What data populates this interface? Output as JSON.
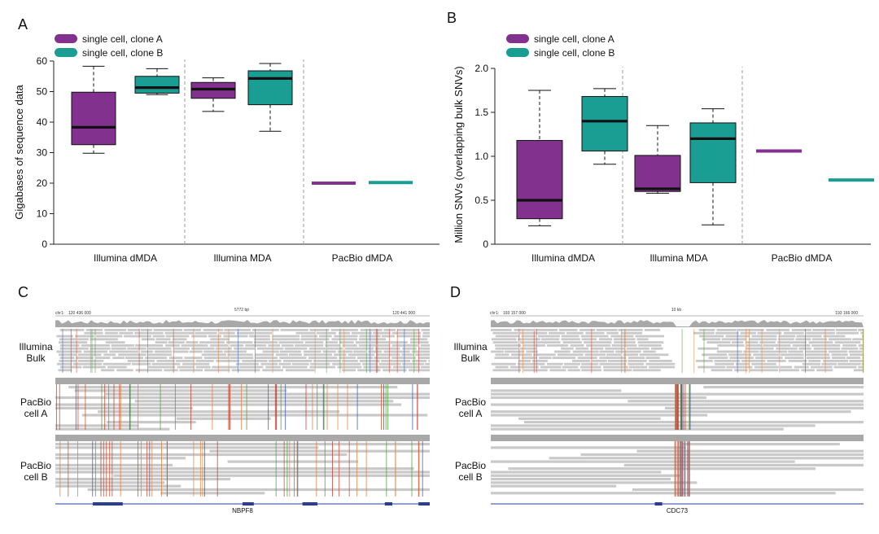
{
  "colors": {
    "clone_a": "#82318f",
    "clone_b": "#1a9e94",
    "grey_read": "#c9c9c9",
    "coverage": "#a8a8a8",
    "gene": "#2a3d94"
  },
  "chart_data": [
    {
      "panel": "A",
      "type": "box",
      "ylabel": "Gigabases of sequence data",
      "ylim": [
        0,
        60
      ],
      "yticks": [
        "0",
        "10",
        "20",
        "30",
        "40",
        "50",
        "60"
      ],
      "categories": [
        "Illumina dMDA",
        "Illumina MDA",
        "PacBio dMDA"
      ],
      "legend": [
        "single cell, clone A",
        "single cell, clone B"
      ],
      "legend_position": "top-left",
      "series": [
        {
          "name": "single cell, clone A",
          "boxes": [
            {
              "whislo": 29.8,
              "q1": 32.6,
              "med": 38.3,
              "q3": 49.8,
              "whishi": 58.3
            },
            {
              "whislo": 43.5,
              "q1": 47.8,
              "med": 50.8,
              "q3": 53.0,
              "whishi": 54.5
            },
            {
              "whislo": 20.0,
              "q1": 20.0,
              "med": 20.0,
              "q3": 20.0,
              "whishi": 20.0
            }
          ]
        },
        {
          "name": "single cell, clone B",
          "boxes": [
            {
              "whislo": 49.0,
              "q1": 49.5,
              "med": 51.3,
              "q3": 55.0,
              "whishi": 57.5
            },
            {
              "whislo": 37.0,
              "q1": 45.7,
              "med": 54.3,
              "q3": 56.8,
              "whishi": 59.2
            },
            {
              "whislo": 20.2,
              "q1": 20.2,
              "med": 20.2,
              "q3": 20.2,
              "whishi": 20.2
            }
          ]
        }
      ]
    },
    {
      "panel": "B",
      "type": "box",
      "ylabel": "Million SNVs (overlapping bulk SNVs)",
      "ylim": [
        0,
        2.0
      ],
      "yticks": [
        "0",
        "0.5",
        "1.0",
        "1.5",
        "2.0"
      ],
      "categories": [
        "Illumina dMDA",
        "Illumina MDA",
        "PacBio dMDA"
      ],
      "legend": [
        "single cell, clone A",
        "single cell, clone B"
      ],
      "legend_position": "top-left",
      "series": [
        {
          "name": "single cell, clone A",
          "boxes": [
            {
              "whislo": 0.21,
              "q1": 0.29,
              "med": 0.5,
              "q3": 1.18,
              "whishi": 1.75
            },
            {
              "whislo": 0.58,
              "q1": 0.6,
              "med": 0.63,
              "q3": 1.01,
              "whishi": 1.35
            },
            {
              "whislo": 1.06,
              "q1": 1.06,
              "med": 1.06,
              "q3": 1.06,
              "whishi": 1.06
            }
          ]
        },
        {
          "name": "single cell, clone B",
          "boxes": [
            {
              "whislo": 0.91,
              "q1": 1.06,
              "med": 1.4,
              "q3": 1.68,
              "whishi": 1.77
            },
            {
              "whislo": 0.22,
              "q1": 0.7,
              "med": 1.2,
              "q3": 1.38,
              "whishi": 1.54
            },
            {
              "whislo": 0.73,
              "q1": 0.73,
              "med": 0.73,
              "q3": 0.73,
              "whishi": 0.73
            }
          ]
        }
      ]
    }
  ],
  "panels": {
    "A": {
      "letter": "A"
    },
    "B": {
      "letter": "B"
    },
    "C": {
      "letter": "C",
      "chrom": "chr1:",
      "pos_left": "120 436 000",
      "span": "5772 bp",
      "pos_right": "120 441 000",
      "tracks": [
        {
          "line1": "Illumina",
          "line2": "Bulk"
        },
        {
          "line1": "PacBio",
          "line2": "cell A"
        },
        {
          "line1": "PacBio",
          "line2": "cell B"
        }
      ],
      "gene": "NBPF8"
    },
    "D": {
      "letter": "D",
      "chrom": "chr1:",
      "pos_left": "193 157 000",
      "span": "10 kb",
      "pos_right": "193 166 000",
      "tracks": [
        {
          "line1": "Illumina",
          "line2": "Bulk"
        },
        {
          "line1": "PacBio",
          "line2": "cell A"
        },
        {
          "line1": "PacBio",
          "line2": "cell B"
        }
      ],
      "gene": "CDC73"
    }
  }
}
